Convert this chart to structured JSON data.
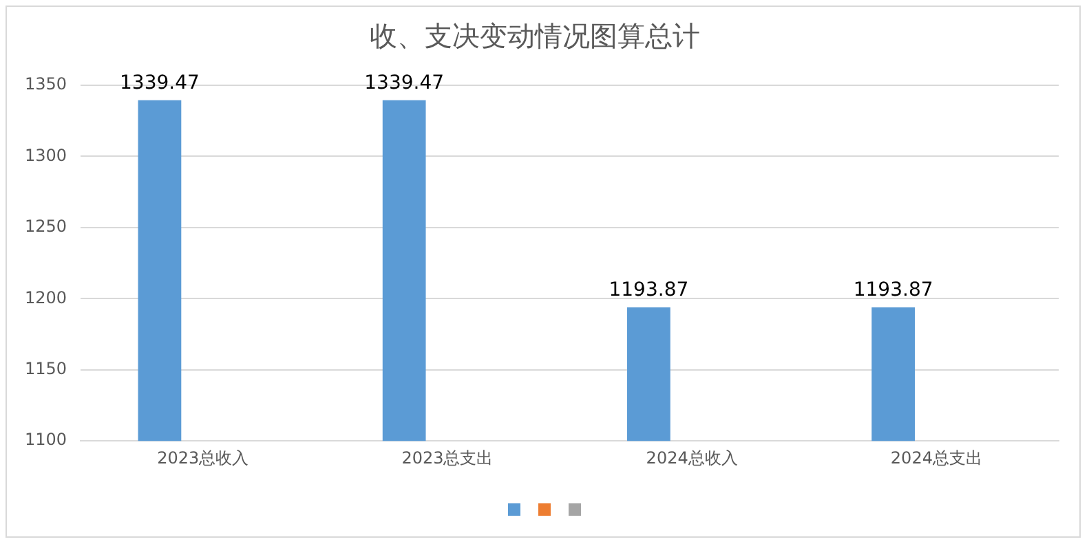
{
  "chart_data": {
    "type": "bar",
    "title": "收、支决变动情况图算总计",
    "categories": [
      "2023总收入",
      "2023总支出",
      "2024总收入",
      "2024总支出"
    ],
    "series": [
      {
        "color": "#5b9bd5",
        "values": [
          1339.47,
          1339.47,
          1193.87,
          1193.87
        ]
      },
      {
        "color": "#ed7d31",
        "values": [
          null,
          null,
          null,
          null
        ]
      },
      {
        "color": "#a5a5a5",
        "values": [
          null,
          null,
          null,
          null
        ]
      }
    ],
    "ylim": [
      1100,
      1350
    ],
    "yticks": [
      1100,
      1150,
      1200,
      1250,
      1300,
      1350
    ],
    "grid": "y",
    "data_labels": true
  }
}
